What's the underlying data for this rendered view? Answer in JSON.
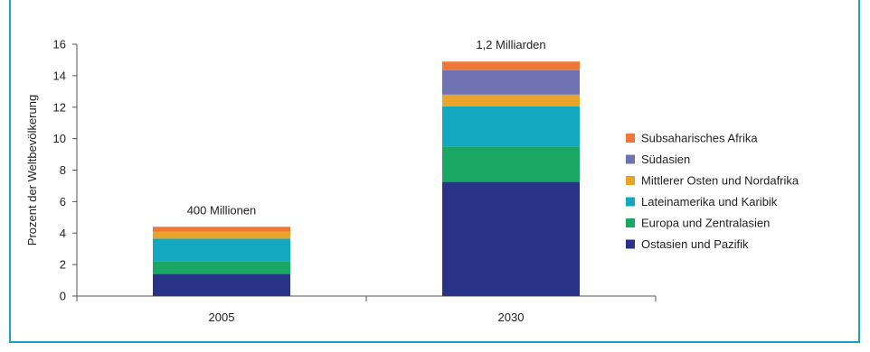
{
  "chart_data": {
    "type": "bar",
    "stacked": true,
    "categories": [
      "2005",
      "2030"
    ],
    "ylabel": "Prozent der Weltbevölkerung",
    "ylim": [
      0,
      16
    ],
    "yticks": [
      0,
      2,
      4,
      6,
      8,
      10,
      12,
      14,
      16
    ],
    "legend_position": "right",
    "bar_labels": [
      "400 Millionen",
      "1,2 Milliarden"
    ],
    "series": [
      {
        "name": "Ostasien und Pazifik",
        "color": "#283387",
        "values": [
          1.4,
          7.25
        ]
      },
      {
        "name": "Europa und Zentralasien",
        "color": "#1aa663",
        "values": [
          0.8,
          2.25
        ]
      },
      {
        "name": "Lateinamerika und Karibik",
        "color": "#11a8c0",
        "values": [
          1.45,
          2.55
        ]
      },
      {
        "name": "Mittlerer Osten und Nordafrika",
        "color": "#e9a52a",
        "values": [
          0.45,
          0.75
        ]
      },
      {
        "name": "Südasien",
        "color": "#7071b1",
        "values": [
          0.0,
          1.55
        ]
      },
      {
        "name": "Subsaharisches Afrika",
        "color": "#ee7838",
        "values": [
          0.3,
          0.55
        ]
      }
    ]
  }
}
